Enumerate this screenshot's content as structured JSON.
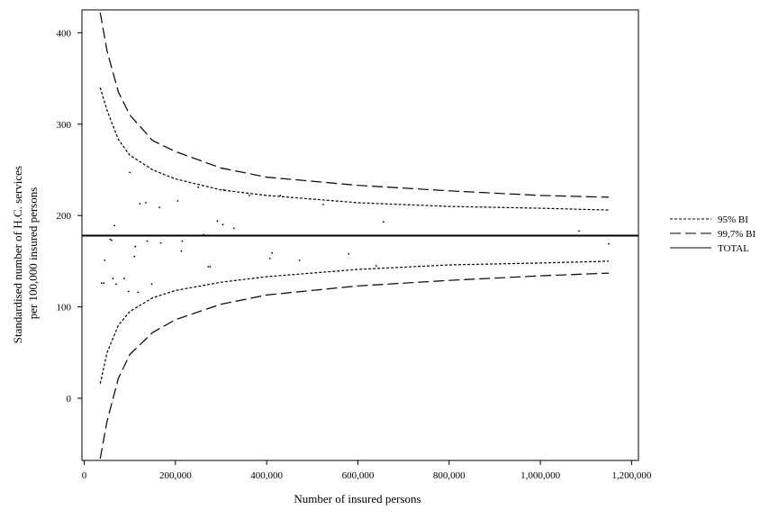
{
  "chart_data": {
    "type": "scatter",
    "title": "",
    "xlabel": "Number of insured persons",
    "ylabel_lines": [
      "Standardised number of H.C. services",
      "per 100,000 insured persons"
    ],
    "xlim": [
      -5000,
      1215000
    ],
    "ylim": [
      -68,
      425
    ],
    "x_ticks": [
      0,
      200000,
      400000,
      600000,
      800000,
      1000000,
      1200000
    ],
    "x_tick_labels": [
      "0",
      "200,000",
      "400,000",
      "600,000",
      "800,000",
      "1,000,000",
      "1,200,000"
    ],
    "y_ticks": [
      0,
      100,
      200,
      300,
      400
    ],
    "y_tick_labels": [
      "0",
      "100",
      "200",
      "300",
      "400"
    ],
    "grid": false,
    "legend_position": "right",
    "legend": [
      {
        "label": "95% BI",
        "style": "dotted"
      },
      {
        "label": "99,7% BI",
        "style": "dashed"
      },
      {
        "label": "TOTAL",
        "style": "solid"
      }
    ],
    "total": 178,
    "limits": {
      "x_start": 35000,
      "x_end": 1150000,
      "bi95_upper": [
        [
          35000,
          340
        ],
        [
          50000,
          315
        ],
        [
          75000,
          283
        ],
        [
          100000,
          266
        ],
        [
          150000,
          250
        ],
        [
          200000,
          240
        ],
        [
          300000,
          228
        ],
        [
          400000,
          222
        ],
        [
          600000,
          214
        ],
        [
          800000,
          210
        ],
        [
          1000000,
          208
        ],
        [
          1150000,
          206
        ]
      ],
      "bi95_lower": [
        [
          35000,
          16
        ],
        [
          50000,
          50
        ],
        [
          75000,
          80
        ],
        [
          100000,
          95
        ],
        [
          150000,
          110
        ],
        [
          200000,
          118
        ],
        [
          300000,
          127
        ],
        [
          400000,
          133
        ],
        [
          600000,
          141
        ],
        [
          800000,
          146
        ],
        [
          1000000,
          148
        ],
        [
          1150000,
          150
        ]
      ],
      "bi997_upper": [
        [
          35000,
          422
        ],
        [
          50000,
          380
        ],
        [
          75000,
          335
        ],
        [
          100000,
          310
        ],
        [
          150000,
          282
        ],
        [
          200000,
          270
        ],
        [
          300000,
          252
        ],
        [
          400000,
          242
        ],
        [
          600000,
          233
        ],
        [
          800000,
          227
        ],
        [
          1000000,
          222
        ],
        [
          1150000,
          220
        ]
      ],
      "bi997_lower": [
        [
          35000,
          -66
        ],
        [
          50000,
          -25
        ],
        [
          75000,
          22
        ],
        [
          100000,
          48
        ],
        [
          150000,
          72
        ],
        [
          200000,
          86
        ],
        [
          300000,
          103
        ],
        [
          400000,
          113
        ],
        [
          600000,
          123
        ],
        [
          800000,
          129
        ],
        [
          1000000,
          134
        ],
        [
          1150000,
          137
        ]
      ]
    },
    "points": [
      [
        38000,
        126
      ],
      [
        43000,
        126
      ],
      [
        45000,
        151
      ],
      [
        57000,
        174
      ],
      [
        60000,
        173
      ],
      [
        63000,
        131
      ],
      [
        66000,
        189
      ],
      [
        70000,
        125
      ],
      [
        88000,
        131
      ],
      [
        97000,
        117
      ],
      [
        100000,
        247
      ],
      [
        110000,
        155
      ],
      [
        112000,
        166
      ],
      [
        118000,
        116
      ],
      [
        122000,
        213
      ],
      [
        135000,
        214
      ],
      [
        138000,
        172
      ],
      [
        148000,
        125
      ],
      [
        165000,
        209
      ],
      [
        168000,
        170
      ],
      [
        205000,
        216
      ],
      [
        213000,
        161
      ],
      [
        215000,
        172
      ],
      [
        250000,
        231
      ],
      [
        262000,
        179
      ],
      [
        272000,
        144
      ],
      [
        276000,
        144
      ],
      [
        292000,
        194
      ],
      [
        304000,
        190
      ],
      [
        306000,
        228
      ],
      [
        328000,
        186
      ],
      [
        362000,
        222
      ],
      [
        407000,
        153
      ],
      [
        412000,
        159
      ],
      [
        430000,
        222
      ],
      [
        472000,
        151
      ],
      [
        524000,
        212
      ],
      [
        580000,
        158
      ],
      [
        640000,
        145
      ],
      [
        656000,
        193
      ],
      [
        1085000,
        183
      ],
      [
        1150000,
        169
      ]
    ]
  }
}
